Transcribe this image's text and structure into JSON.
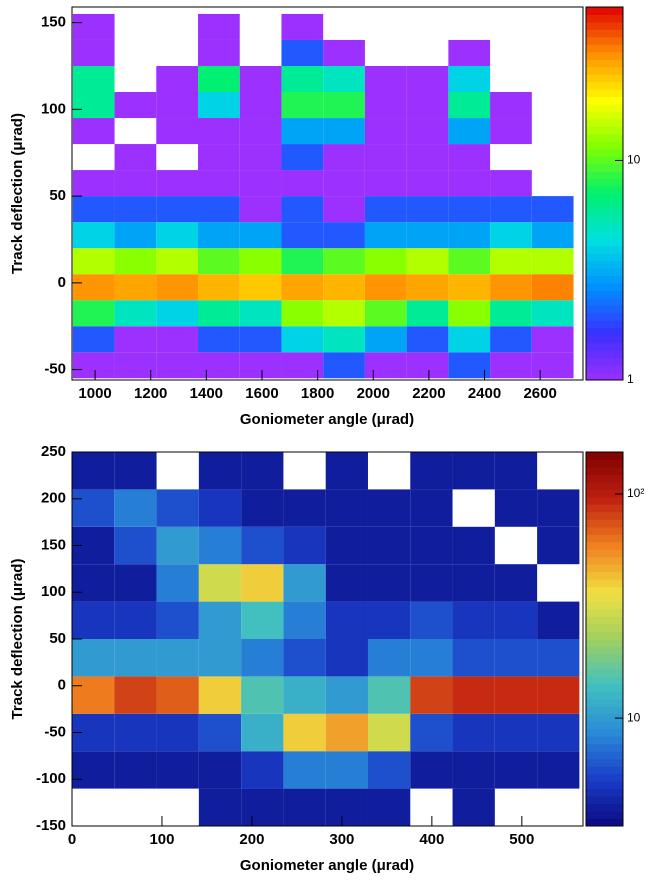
{
  "chart_data": [
    {
      "type": "heatmap",
      "x_label": "Goniometer angle (μrad)",
      "y_label": "Track deflection  (μrad)",
      "xlim": [
        917,
        2754
      ],
      "ylim": [
        -56,
        159
      ],
      "xticks": [
        1000,
        1200,
        1400,
        1600,
        1800,
        2000,
        2200,
        2400,
        2600
      ],
      "yticks": [
        -50,
        0,
        50,
        100,
        150
      ],
      "xbins": [
        920,
        1070,
        1220,
        1370,
        1520,
        1670,
        1820,
        1970,
        2120,
        2270,
        2420,
        2570,
        2720
      ],
      "ybins": [
        -55,
        -40,
        -25,
        -10,
        5,
        20,
        35,
        50,
        65,
        80,
        95,
        110,
        125,
        140,
        155
      ],
      "z": [
        [
          1,
          1,
          1,
          1,
          1,
          1,
          2,
          1,
          1,
          2,
          1,
          1
        ],
        [
          2,
          1,
          1,
          2,
          2,
          4,
          5,
          3,
          2,
          4,
          2,
          1
        ],
        [
          8,
          5,
          4,
          6,
          5,
          12,
          14,
          10,
          6,
          12,
          6,
          5
        ],
        [
          30,
          28,
          30,
          26,
          24,
          28,
          26,
          30,
          28,
          26,
          30,
          32
        ],
        [
          14,
          12,
          14,
          10,
          12,
          8,
          10,
          12,
          14,
          10,
          14,
          14
        ],
        [
          4,
          3,
          4,
          3,
          3,
          2,
          2,
          3,
          3,
          3,
          4,
          3
        ],
        [
          2,
          2,
          2,
          2,
          1,
          2,
          1,
          2,
          2,
          2,
          2,
          2
        ],
        [
          1,
          1,
          1,
          1,
          1,
          1,
          1,
          1,
          1,
          1,
          1,
          null
        ],
        [
          null,
          1,
          null,
          1,
          1,
          2,
          1,
          1,
          1,
          1,
          null,
          null
        ],
        [
          1,
          null,
          1,
          1,
          1,
          3,
          3,
          1,
          1,
          3,
          1,
          null
        ],
        [
          6,
          1,
          1,
          4,
          1,
          8,
          8,
          1,
          1,
          6,
          1,
          null
        ],
        [
          6,
          null,
          1,
          7,
          1,
          6,
          5,
          1,
          1,
          4,
          null,
          null
        ],
        [
          1,
          null,
          null,
          1,
          null,
          2,
          1,
          null,
          null,
          1,
          null,
          null
        ],
        [
          1,
          null,
          null,
          1,
          null,
          1,
          null,
          null,
          null,
          null,
          null,
          null
        ]
      ],
      "log_z": true,
      "zlim": [
        1,
        50
      ],
      "zticks": [
        1,
        10
      ],
      "colorscale": [
        "#9b30ff",
        "#3a30ff",
        "#0090ff",
        "#00e0e0",
        "#00f070",
        "#80ff00",
        "#ffff00",
        "#ff9000",
        "#e00000"
      ]
    },
    {
      "type": "heatmap",
      "x_label": "Goniometer angle (μrad)",
      "y_label": "Track deflection  (μrad)",
      "xlim": [
        0,
        568
      ],
      "ylim": [
        -150,
        250
      ],
      "xticks": [
        0,
        100,
        200,
        300,
        400,
        500
      ],
      "yticks": [
        -150,
        -100,
        -50,
        0,
        50,
        100,
        150,
        200,
        250
      ],
      "xbins": [
        0,
        47,
        94,
        141,
        188,
        235,
        282,
        329,
        376,
        423,
        470,
        517,
        564
      ],
      "ybins": [
        -150,
        -110,
        -70,
        -30,
        10,
        50,
        90,
        130,
        170,
        210,
        250
      ],
      "z": [
        [
          null,
          null,
          null,
          4,
          4,
          4,
          4,
          4,
          null,
          4,
          null,
          null
        ],
        [
          4,
          4,
          4,
          4,
          5,
          8,
          8,
          6,
          4,
          4,
          4,
          4
        ],
        [
          5,
          5,
          5,
          6,
          12,
          40,
          50,
          30,
          6,
          5,
          5,
          5
        ],
        [
          60,
          80,
          70,
          40,
          15,
          12,
          10,
          15,
          80,
          90,
          90,
          90
        ],
        [
          10,
          10,
          10,
          10,
          8,
          6,
          5,
          8,
          8,
          6,
          6,
          6
        ],
        [
          5,
          5,
          6,
          10,
          14,
          8,
          5,
          5,
          6,
          5,
          5,
          4
        ],
        [
          4,
          4,
          8,
          30,
          40,
          10,
          4,
          4,
          4,
          4,
          4,
          null
        ],
        [
          4,
          6,
          10,
          8,
          6,
          5,
          4,
          4,
          4,
          4,
          null,
          4
        ],
        [
          6,
          8,
          6,
          5,
          4,
          4,
          4,
          4,
          4,
          null,
          4,
          4
        ],
        [
          4,
          4,
          null,
          4,
          4,
          null,
          4,
          null,
          4,
          4,
          4,
          null
        ]
      ],
      "log_z": true,
      "zlim": [
        3.3,
        154
      ],
      "zticks": [
        10,
        {
          "value": 100,
          "label": "10²"
        }
      ],
      "colorscale": [
        "#0a0a80",
        "#1a3cc8",
        "#2a8ad8",
        "#40c0c0",
        "#a0d060",
        "#f0e040",
        "#f08020",
        "#c02010",
        "#800000"
      ]
    }
  ]
}
